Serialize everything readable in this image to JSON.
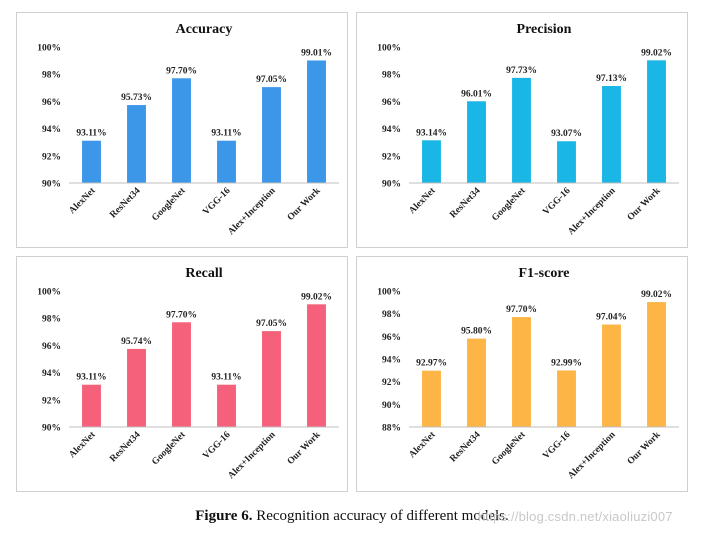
{
  "chart_data": [
    {
      "type": "bar",
      "title": "Accuracy",
      "categories": [
        "AlexNet",
        "ResNet34",
        "GoogleNet",
        "VGG-16",
        "Alex+Inception",
        "Our Work"
      ],
      "values": [
        93.11,
        95.73,
        97.7,
        93.11,
        97.05,
        99.01
      ],
      "data_labels": [
        "93.11%",
        "95.73%",
        "97.70%",
        "93.11%",
        "97.05%",
        "99.01%"
      ],
      "ylim": [
        90,
        100
      ],
      "yticks": [
        "90%",
        "92%",
        "94%",
        "96%",
        "98%",
        "100%"
      ],
      "color": "#3c97e9",
      "grid": false
    },
    {
      "type": "bar",
      "title": "Precision",
      "categories": [
        "AlexNet",
        "ResNet34",
        "GoogleNet",
        "VGG-16",
        "Alex+Inception",
        "Our Work"
      ],
      "values": [
        93.14,
        96.01,
        97.73,
        93.07,
        97.13,
        99.02
      ],
      "data_labels": [
        "93.14%",
        "96.01%",
        "97.73%",
        "93.07%",
        "97.13%",
        "99.02%"
      ],
      "ylim": [
        90,
        100
      ],
      "yticks": [
        "90%",
        "92%",
        "94%",
        "96%",
        "98%",
        "100%"
      ],
      "color": "#1ab6e6",
      "grid": false
    },
    {
      "type": "bar",
      "title": "Recall",
      "categories": [
        "AlexNet",
        "ResNet34",
        "GoogleNet",
        "VGG-16",
        "Alex+Inception",
        "Our Work"
      ],
      "values": [
        93.11,
        95.74,
        97.7,
        93.11,
        97.05,
        99.02
      ],
      "data_labels": [
        "93.11%",
        "95.74%",
        "97.70%",
        "93.11%",
        "97.05%",
        "99.02%"
      ],
      "ylim": [
        90,
        100
      ],
      "yticks": [
        "90%",
        "92%",
        "94%",
        "96%",
        "98%",
        "100%"
      ],
      "color": "#f5607a",
      "grid": false
    },
    {
      "type": "bar",
      "title": "F1-score",
      "categories": [
        "AlexNet",
        "ResNet34",
        "GoogleNet",
        "VGG-16",
        "Alex+Inception",
        "Our Work"
      ],
      "values": [
        92.97,
        95.8,
        97.7,
        92.99,
        97.04,
        99.02
      ],
      "data_labels": [
        "92.97%",
        "95.80%",
        "97.70%",
        "92.99%",
        "97.04%",
        "99.02%"
      ],
      "ylim": [
        88,
        100
      ],
      "yticks": [
        "88%",
        "90%",
        "92%",
        "94%",
        "96%",
        "98%",
        "100%"
      ],
      "color": "#fdb545",
      "grid": false
    }
  ],
  "caption": {
    "label": "Figure 6.",
    "text": " Recognition accuracy of different models."
  },
  "watermark": "https://blog.csdn.net/xiaoliuzi007"
}
